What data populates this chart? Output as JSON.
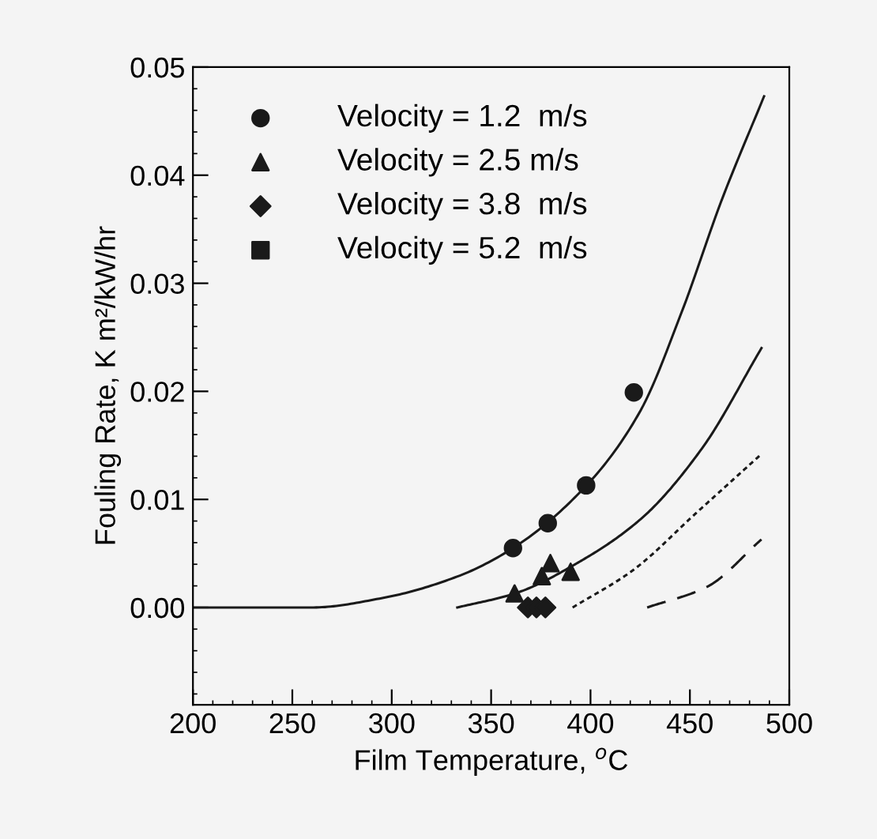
{
  "chart_data": {
    "type": "scatter",
    "xlabel": "Film Temperature, $^{o}$C",
    "ylabel": "Fouling Rate, K m²/kW/hr",
    "xlim": [
      200,
      500
    ],
    "xticks": [
      200,
      250,
      300,
      350,
      400,
      450,
      500
    ],
    "ylim": [
      -0.009,
      0.05
    ],
    "yticks": [
      {
        "value": 0,
        "label": "0.00"
      },
      {
        "value": 0.01,
        "label": "0.01"
      },
      {
        "value": 0.02,
        "label": "0.02"
      },
      {
        "value": 0.03,
        "label": "0.03"
      },
      {
        "value": 0.04,
        "label": "0.04"
      },
      {
        "value": 0.05,
        "label": "0.05"
      }
    ],
    "grid": false,
    "legend": "top left",
    "series": [
      {
        "name": "Velocity = 1.2  m/s",
        "color": "#1a1a1a",
        "marker": "circle",
        "x": [
          361,
          378.5,
          397.8,
          421.8
        ],
        "values": [
          0.0055,
          0.0078,
          0.0113,
          0.0199
        ]
      },
      {
        "name": "Velocity = 2.5 m/s",
        "color": "#1a1a1a",
        "marker": "triangle",
        "x": [
          361.8,
          375.5,
          379.8,
          390
        ],
        "values": [
          0.0013,
          0.0029,
          0.0041,
          0.0033
        ]
      },
      {
        "name": "Velocity = 3.8  m/s",
        "color": "#1a1a1a",
        "marker": "diamond",
        "x": [
          368.5,
          372.8,
          377.3
        ],
        "values": [
          0,
          0,
          0
        ]
      },
      {
        "name": "Velocity = 5.2  m/s",
        "color": "#1a1a1a",
        "marker": "square"
      },
      {
        "type": "line",
        "color": "#1a1a1a",
        "line_style": "solid",
        "x": [
          200,
          260,
          296,
          333.5,
          361,
          398,
          424.8,
          446,
          466,
          487.3
        ],
        "values": [
          0,
          0,
          0.0009,
          0.0029,
          0.0055,
          0.0113,
          0.0181,
          0.0274,
          0.0377,
          0.0473
        ]
      },
      {
        "type": "line",
        "color": "#1a1a1a",
        "line_style": "solid",
        "x": [
          333,
          362,
          396,
          426,
          456,
          486
        ],
        "values": [
          0,
          0.0013,
          0.0044,
          0.0083,
          0.0147,
          0.024
        ]
      },
      {
        "type": "line",
        "color": "#1a1a1a",
        "line_style": "dotted",
        "x": [
          391,
          421,
          453.5,
          486
        ],
        "values": [
          0,
          0.0034,
          0.0088,
          0.0142
        ]
      },
      {
        "type": "line",
        "color": "#1a1a1a",
        "line_style": "dashed",
        "x": [
          428.5,
          458.5,
          486
        ],
        "values": [
          0,
          0.0019,
          0.0063
        ]
      }
    ]
  }
}
